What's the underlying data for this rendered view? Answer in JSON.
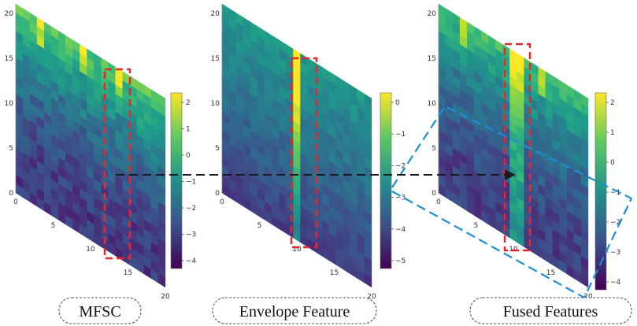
{
  "panels": [
    {
      "id": "mfsc",
      "caption": "MFSC",
      "y_ticks": [
        "0",
        "5",
        "10",
        "15",
        "20"
      ],
      "x_ticks": [
        "0",
        "5",
        "10",
        "15",
        "20"
      ],
      "colorbar_ticks": [
        "2",
        "1",
        "0",
        "−1",
        "−2",
        "−3",
        "−4"
      ],
      "colormap": "viridis"
    },
    {
      "id": "envelope",
      "caption": "Envelope Feature",
      "y_ticks": [
        "0",
        "5",
        "10",
        "15",
        "20"
      ],
      "x_ticks": [
        "0",
        "5",
        "10",
        "15",
        "20"
      ],
      "colorbar_ticks": [
        "0",
        "−1",
        "−2",
        "−3",
        "−4",
        "−5"
      ],
      "colormap": "viridis"
    },
    {
      "id": "fused",
      "caption": "Fused Features",
      "y_ticks": [
        "0",
        "5",
        "10",
        "15",
        "20"
      ],
      "x_ticks": [
        "0",
        "5",
        "10",
        "15",
        "20"
      ],
      "colorbar_ticks": [
        "2",
        "1",
        "0",
        "−1",
        "−2",
        "−3",
        "−4"
      ],
      "colormap": "viridis"
    }
  ],
  "annotation_colors": {
    "highlight_box": "#e8262b",
    "arrow": "#1a1a1a",
    "zoom_lines": "#1a8fd6"
  }
}
